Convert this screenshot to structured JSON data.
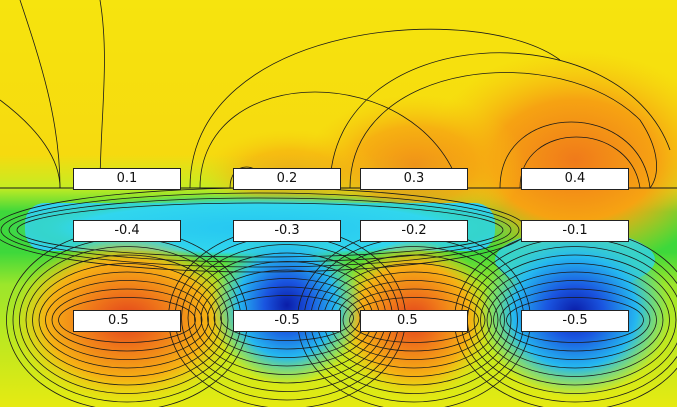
{
  "plot": {
    "row1": [
      "0.1",
      "0.2",
      "0.3",
      "0.4"
    ],
    "row2": [
      "-0.4",
      "-0.3",
      "-0.2",
      "-0.1"
    ],
    "row3": [
      "0.5",
      "-0.5",
      "0.5",
      "-0.5"
    ]
  },
  "colors": {
    "yellow": "#f6ec0c",
    "orange": "#f6a312",
    "deep_orange": "#e8531d",
    "green": "#3ed83b",
    "light_green": "#a6ea2d",
    "cyan": "#2fd8ee",
    "sky": "#25b8f0",
    "blue": "#123ed6",
    "deep_blue": "#0a1da8",
    "contour": "#1a1a1a"
  }
}
